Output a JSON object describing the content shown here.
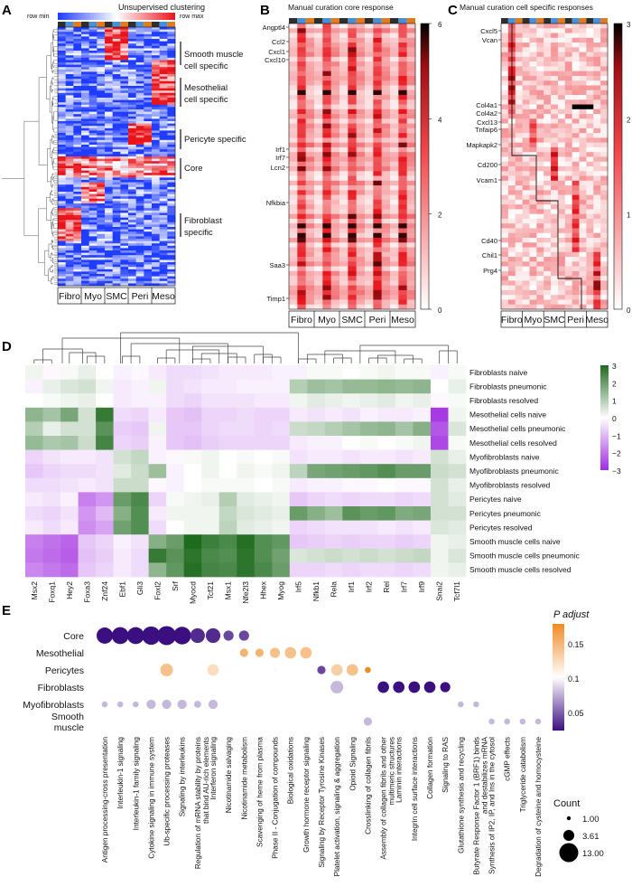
{
  "panels": {
    "A": "A",
    "B": "B",
    "C": "C",
    "D": "D",
    "E": "E"
  },
  "colors": {
    "low": "#1f3cff",
    "mid": "#ffffff",
    "high": "#e8141b",
    "dark": "#000000",
    "green": "#1e6b1e",
    "purple": "#a12ce0",
    "dotDark": "#3b0f80",
    "dotMid": "#c9b6d9",
    "dotHigh": "#f08a24"
  },
  "groups": [
    "Fibro",
    "Myo",
    "SMC",
    "Peri",
    "Meso"
  ],
  "panelA": {
    "title": "Unsupervised clustering",
    "rowmin": "row min",
    "rowmax": "row max",
    "annotations": [
      "Smooth muscle cell specific",
      "Mesothelial cell specific",
      "Pericyte specific",
      "Core",
      "Fibroblast specific"
    ]
  },
  "panelB": {
    "title": "Manual curation core response",
    "genes": [
      "Angptl4",
      "Ccl2",
      "Cxcl1",
      "Cxcl10",
      "Irf1",
      "Irf7",
      "Lcn2",
      "Nfkbia",
      "Saa3",
      "Timp1"
    ],
    "scale": [
      "6",
      "4",
      "2",
      "0"
    ]
  },
  "panelC": {
    "title": "Manual curation cell specific responses",
    "genes": [
      "Cxcl5",
      "Vcan",
      "Col4a1",
      "Col4a2",
      "Cxcl13",
      "Tnfaip6",
      "Mapkapk2",
      "Cd200",
      "Vcam1",
      "Cd40",
      "Chil1",
      "Prg4"
    ],
    "scale": [
      "3",
      "2",
      "1",
      "0"
    ]
  },
  "chart_data": [
    {
      "type": "heatmap",
      "title": "",
      "columns": [
        "Msx2",
        "Foxq1",
        "Hey2",
        "Foxa3",
        "Znf24",
        "Ebf1",
        "Gli3",
        "Foxl2",
        "Srf",
        "Myocd",
        "Tcf21",
        "Msx1",
        "Nfe2l3",
        "Hhex",
        "Myog",
        "Irf5",
        "Nfkb1",
        "Rela",
        "Irf1",
        "Irf2",
        "Rel",
        "Irf7",
        "Irf9",
        "Snai2",
        "Tcf7l1"
      ],
      "rows": [
        "Fibroblasts  naive",
        "Fibroblasts  pneumonic",
        "Fibroblasts  resolved",
        "Mesothelial cells  naive",
        "Mesothelial cells  pneumonic",
        "Mesothelial cells  resolved",
        "Myofibroblasts  naive",
        "Myofibroblasts  pneumonic",
        "Myofibroblasts  resolved",
        "Pericytes  naive",
        "Pericytes  pneumonic",
        "Pericytes  resolved",
        "Smooth muscle cells  naive",
        "Smooth muscle cells  pneumonic",
        "Smooth muscle cells  resolved"
      ],
      "values": [
        [
          0.2,
          -0.1,
          0.1,
          0.3,
          0.0,
          -0.2,
          -0.1,
          -0.3,
          -0.5,
          -0.5,
          -0.4,
          -0.3,
          -0.3,
          -0.3,
          -0.2,
          -0.2,
          0.1,
          0.1,
          0.0,
          0.1,
          0.2,
          0.1,
          0.1,
          -0.2,
          0.1
        ],
        [
          -0.2,
          0.3,
          0.5,
          0.6,
          0.2,
          -0.3,
          -0.2,
          0.2,
          -0.5,
          -0.4,
          -0.3,
          -0.3,
          -0.2,
          -0.2,
          -0.2,
          1.0,
          1.3,
          1.2,
          1.4,
          1.4,
          1.5,
          1.4,
          1.5,
          0.0,
          0.3
        ],
        [
          0.0,
          0.1,
          0.2,
          0.3,
          0.0,
          -0.3,
          -0.2,
          -0.2,
          -0.5,
          -0.6,
          -0.4,
          -0.4,
          -0.4,
          -0.3,
          -0.3,
          0.2,
          0.4,
          0.3,
          0.2,
          0.3,
          0.4,
          0.2,
          0.3,
          -0.1,
          0.1
        ],
        [
          1.5,
          1.2,
          1.8,
          0.6,
          2.7,
          -0.5,
          -0.6,
          -0.3,
          -0.8,
          -0.9,
          -0.6,
          -0.6,
          -0.5,
          -0.6,
          -0.6,
          -0.3,
          -0.4,
          -0.3,
          -0.4,
          -0.2,
          -0.3,
          -0.3,
          -0.2,
          -2.8,
          0.2
        ],
        [
          1.0,
          0.3,
          0.6,
          0.6,
          2.2,
          -0.7,
          -0.8,
          0.2,
          -0.8,
          -0.8,
          -0.6,
          -0.5,
          -0.5,
          -0.6,
          -0.5,
          0.7,
          0.8,
          1.0,
          1.2,
          1.4,
          1.5,
          1.2,
          1.6,
          -2.4,
          0.5
        ],
        [
          1.4,
          1.1,
          1.2,
          0.7,
          2.5,
          -0.6,
          -0.7,
          -0.2,
          -0.8,
          -0.9,
          -0.7,
          -0.6,
          -0.6,
          -0.6,
          -0.6,
          -0.3,
          -0.2,
          -0.2,
          0.0,
          0.1,
          0.0,
          0.1,
          0.2,
          -2.6,
          0.1
        ],
        [
          -0.6,
          -0.4,
          -0.3,
          -0.3,
          -0.4,
          0.6,
          0.8,
          -0.2,
          -0.1,
          0.1,
          0.2,
          0.0,
          0.1,
          0.0,
          0.1,
          -0.4,
          -0.3,
          -0.3,
          -0.4,
          -0.3,
          -0.3,
          -0.4,
          -0.3,
          0.6,
          0.3
        ],
        [
          -0.8,
          -0.6,
          -0.5,
          -0.5,
          -0.4,
          0.4,
          0.7,
          1.3,
          -0.2,
          0.0,
          0.2,
          0.0,
          0.2,
          0.1,
          0.2,
          0.9,
          1.8,
          1.9,
          2.0,
          2.1,
          2.3,
          2.0,
          2.0,
          0.7,
          0.6
        ],
        [
          -0.5,
          -0.5,
          -0.4,
          -0.3,
          -0.4,
          0.7,
          0.7,
          -0.1,
          -0.2,
          0.0,
          0.1,
          0.1,
          0.1,
          0.0,
          0.1,
          -0.3,
          -0.2,
          -0.2,
          -0.1,
          -0.1,
          0.0,
          -0.1,
          -0.1,
          0.6,
          0.3
        ],
        [
          -0.3,
          -0.4,
          -0.2,
          -1.8,
          -1.5,
          2.0,
          2.4,
          -0.6,
          0.1,
          0.2,
          0.3,
          1.0,
          0.4,
          0.3,
          0.2,
          -0.8,
          -0.6,
          -0.5,
          -0.6,
          -0.5,
          -0.5,
          -0.6,
          -0.5,
          0.6,
          0.4
        ],
        [
          -0.5,
          -0.6,
          -0.4,
          -1.5,
          -1.0,
          1.6,
          2.3,
          -0.3,
          0.2,
          0.2,
          0.2,
          0.8,
          0.5,
          0.4,
          0.3,
          2.0,
          1.6,
          1.3,
          2.2,
          2.0,
          2.1,
          1.7,
          1.8,
          0.6,
          0.6
        ],
        [
          -0.3,
          -0.5,
          -0.3,
          -1.6,
          -1.3,
          1.9,
          2.3,
          -0.5,
          0.0,
          0.2,
          0.2,
          0.9,
          0.4,
          0.3,
          0.2,
          -0.6,
          -0.5,
          -0.4,
          -0.4,
          -0.4,
          -0.3,
          -0.4,
          -0.3,
          0.5,
          0.4
        ],
        [
          -1.8,
          -2.0,
          -2.2,
          -0.8,
          -0.6,
          -0.2,
          -0.4,
          1.6,
          2.0,
          3.0,
          2.6,
          2.4,
          2.9,
          2.3,
          2.1,
          -0.8,
          -0.7,
          -0.6,
          -0.7,
          -0.6,
          -0.6,
          -0.7,
          -0.6,
          0.2,
          0.3
        ],
        [
          -1.9,
          -2.1,
          -2.3,
          -0.9,
          -0.7,
          -0.3,
          -0.5,
          2.7,
          2.2,
          2.8,
          2.4,
          2.3,
          2.8,
          2.3,
          1.9,
          0.5,
          0.6,
          0.7,
          0.6,
          0.7,
          0.6,
          0.7,
          0.8,
          0.2,
          0.5
        ],
        [
          -1.7,
          -1.9,
          -2.1,
          -0.8,
          -0.6,
          -0.3,
          -0.5,
          1.5,
          2.1,
          2.9,
          2.5,
          2.4,
          2.8,
          2.4,
          2.0,
          -0.6,
          -0.6,
          -0.5,
          -0.6,
          -0.5,
          -0.5,
          -0.6,
          -0.5,
          0.2,
          0.3
        ]
      ],
      "legend_ticks": [
        "3",
        "2",
        "1",
        "0",
        "−1",
        "−2",
        "−3"
      ],
      "range": [
        -3,
        3
      ]
    },
    {
      "type": "scatter",
      "title": "",
      "rows": [
        "Core",
        "Mesothelial",
        "Pericytes",
        "Fibroblasts",
        "Myofibroblasts",
        "Smooth\nmuscle"
      ],
      "pathways": [
        "Antigen processing-cross presentation",
        "Interleukin-1 signaling",
        "Interleukin-1 family signaling",
        "Cytokine signaling in immune system",
        "Ub-specific processing proteases",
        "Signaling by interleukins",
        "Regulation of mRNA stability by proteins\nthat bind AU-rich elements",
        "Interferon signaling",
        "Nicotinamide salvaging",
        "Nicotinamide metabolism",
        "Scavenging of heme from plasma",
        "Phase II - Conjugation of compounds",
        "Biological oxidations",
        "Growth hormone receptor signaling",
        "Signaling by Receptor Tyrosine Kinases",
        "Platelet activation, signaling & aggregation",
        "Opioid Signaling",
        "Crosslinking of collagen fibrils",
        "Assembly of collagen fibrils and other\nmultimeric structures",
        "Laminin interactions",
        "Integrin cell surface interactions",
        "Collagen formation",
        "Signaling to RAS",
        "Glutathione synthesis and recycling",
        "Butyrate Response Factor 1 (BRF1) binds\nand destabilizes mRNA",
        "Synthesis of IP2, IP, and Ins in the cytosol",
        "cGMP effects",
        "Triglyceride catabolism",
        "Degradation of cysteine and homocysteine"
      ],
      "points": [
        {
          "row": 0,
          "col": 0,
          "count": 9,
          "padj": 0.01
        },
        {
          "row": 0,
          "col": 1,
          "count": 10,
          "padj": 0.01
        },
        {
          "row": 0,
          "col": 2,
          "count": 10,
          "padj": 0.01
        },
        {
          "row": 0,
          "col": 3,
          "count": 12,
          "padj": 0.01
        },
        {
          "row": 0,
          "col": 4,
          "count": 13,
          "padj": 0.01
        },
        {
          "row": 0,
          "col": 5,
          "count": 11,
          "padj": 0.01
        },
        {
          "row": 0,
          "col": 6,
          "count": 7,
          "padj": 0.02
        },
        {
          "row": 0,
          "col": 7,
          "count": 7,
          "padj": 0.02
        },
        {
          "row": 0,
          "col": 8,
          "count": 3,
          "padj": 0.03
        },
        {
          "row": 0,
          "col": 9,
          "count": 3,
          "padj": 0.03
        },
        {
          "row": 1,
          "col": 9,
          "count": 2,
          "padj": 0.15
        },
        {
          "row": 1,
          "col": 10,
          "count": 2,
          "padj": 0.15
        },
        {
          "row": 1,
          "col": 11,
          "count": 3,
          "padj": 0.14
        },
        {
          "row": 1,
          "col": 12,
          "count": 4,
          "padj": 0.14
        },
        {
          "row": 1,
          "col": 13,
          "count": 4,
          "padj": 0.14
        },
        {
          "row": 2,
          "col": 4,
          "count": 5,
          "padj": 0.14
        },
        {
          "row": 2,
          "col": 7,
          "count": 4,
          "padj": 0.12
        },
        {
          "row": 2,
          "col": 11,
          "count": 1,
          "padj": 0.1
        },
        {
          "row": 2,
          "col": 14,
          "count": 2,
          "padj": 0.03
        },
        {
          "row": 2,
          "col": 15,
          "count": 4,
          "padj": 0.13
        },
        {
          "row": 2,
          "col": 16,
          "count": 4,
          "padj": 0.14
        },
        {
          "row": 2,
          "col": 17,
          "count": 1.2,
          "padj": 0.18
        },
        {
          "row": 3,
          "col": 15,
          "count": 5,
          "padj": 0.07
        },
        {
          "row": 3,
          "col": 18,
          "count": 4,
          "padj": 0.01
        },
        {
          "row": 3,
          "col": 19,
          "count": 4,
          "padj": 0.01
        },
        {
          "row": 3,
          "col": 20,
          "count": 4,
          "padj": 0.01
        },
        {
          "row": 3,
          "col": 21,
          "count": 4,
          "padj": 0.01
        },
        {
          "row": 3,
          "col": 22,
          "count": 3,
          "padj": 0.01
        },
        {
          "row": 4,
          "col": 0,
          "count": 1.2,
          "padj": 0.07
        },
        {
          "row": 4,
          "col": 1,
          "count": 1.2,
          "padj": 0.07
        },
        {
          "row": 4,
          "col": 2,
          "count": 1.2,
          "padj": 0.07
        },
        {
          "row": 4,
          "col": 3,
          "count": 2.5,
          "padj": 0.07
        },
        {
          "row": 4,
          "col": 4,
          "count": 2.5,
          "padj": 0.07
        },
        {
          "row": 4,
          "col": 5,
          "count": 2.5,
          "padj": 0.07
        },
        {
          "row": 4,
          "col": 6,
          "count": 1.5,
          "padj": 0.07
        },
        {
          "row": 4,
          "col": 7,
          "count": 2.5,
          "padj": 0.07
        },
        {
          "row": 4,
          "col": 23,
          "count": 1.2,
          "padj": 0.07
        },
        {
          "row": 4,
          "col": 24,
          "count": 1.2,
          "padj": 0.07
        },
        {
          "row": 5,
          "col": 17,
          "count": 2,
          "padj": 0.07
        },
        {
          "row": 5,
          "col": 25,
          "count": 1.2,
          "padj": 0.07
        },
        {
          "row": 5,
          "col": 26,
          "count": 1.2,
          "padj": 0.07
        },
        {
          "row": 5,
          "col": 27,
          "count": 1.2,
          "padj": 0.07
        },
        {
          "row": 5,
          "col": 28,
          "count": 1.2,
          "padj": 0.07
        }
      ],
      "padj_title": "P adjust",
      "padj_ticks": [
        "0.15",
        "0.1",
        "0.05"
      ],
      "count_title": "Count",
      "count_ticks": [
        "1.00",
        "3.61",
        "13.00"
      ]
    }
  ]
}
